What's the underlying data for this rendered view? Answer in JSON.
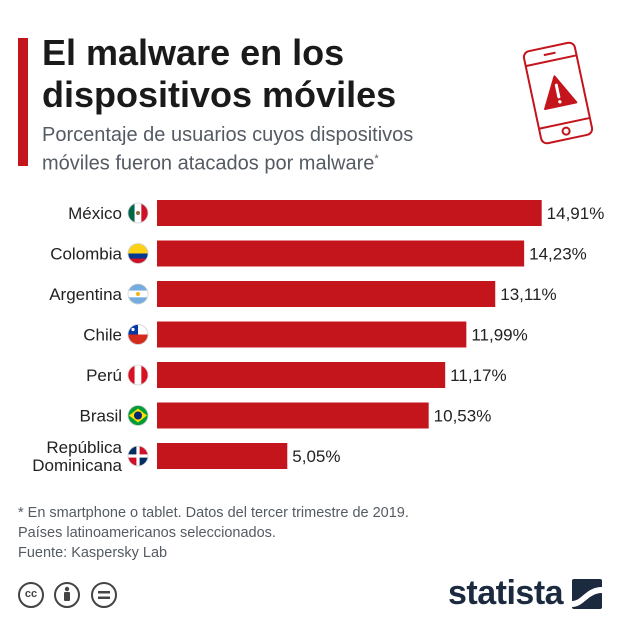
{
  "header": {
    "title_line1": "El malware en los",
    "title_line2": "dispositivos móviles",
    "subtitle_line1": "Porcentaje de usuarios cuyos dispositivos",
    "subtitle_line2": "móviles fueron atacados por malware",
    "subtitle_mark": "*"
  },
  "colors": {
    "bar": "#c4141c",
    "accent": "#c4141c",
    "brand": "#1b2a3f"
  },
  "chart_data": {
    "type": "bar",
    "orientation": "horizontal",
    "title": "El malware en los dispositivos móviles",
    "subtitle": "Porcentaje de usuarios cuyos dispositivos móviles fueron atacados por malware*",
    "categories": [
      [
        "México"
      ],
      [
        "Colombia"
      ],
      [
        "Argentina"
      ],
      [
        "Chile"
      ],
      [
        "Perú"
      ],
      [
        "Brasil"
      ],
      [
        "República",
        "Dominicana"
      ]
    ],
    "values": [
      14.91,
      14.23,
      13.11,
      11.99,
      11.17,
      10.53,
      5.05
    ],
    "value_labels": [
      "14,91%",
      "14,23%",
      "13,11%",
      "11,99%",
      "11,17%",
      "10,53%",
      "5,05%"
    ],
    "flags": [
      "mexico-flag-icon",
      "colombia-flag-icon",
      "argentina-flag-icon",
      "chile-flag-icon",
      "peru-flag-icon",
      "brazil-flag-icon",
      "dominican-republic-flag-icon"
    ],
    "xlim": [
      0,
      16
    ],
    "grid": false,
    "legend": "none"
  },
  "footer": {
    "note_line1": "* En smartphone o tablet. Datos del tercer trimestre de 2019.",
    "note_line2": "Países latinoamericanos seleccionados.",
    "source": "Fuente: Kaspersky Lab",
    "brand": "statista",
    "license_icons": [
      "cc-icon",
      "attribution-icon",
      "no-derivatives-icon"
    ]
  }
}
